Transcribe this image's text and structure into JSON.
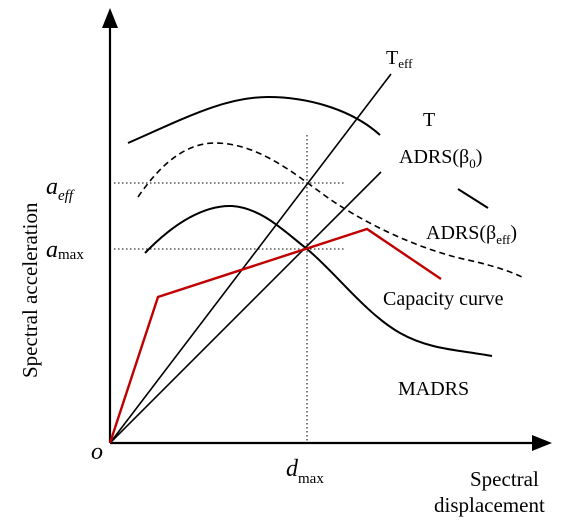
{
  "axes": {
    "y_title": "Spectral acceleration",
    "x_title_line1": "Spectral",
    "x_title_line2": "displacement",
    "origin": "o"
  },
  "ticks": {
    "a_eff": {
      "main": "a",
      "sub": "eff"
    },
    "a_max": {
      "main": "a",
      "sub": "max"
    },
    "d_max": {
      "main": "d",
      "sub": "max"
    }
  },
  "labels": {
    "t_eff": {
      "main": "T",
      "sub": "eff"
    },
    "t": "T",
    "adrs_beta0": {
      "pre": "ADRS(β",
      "sub": "0",
      "post": ")"
    },
    "adrs_beta_eff": {
      "pre": "ADRS(β",
      "sub": "eff",
      "post": ")"
    },
    "capacity_curve": "Capacity curve",
    "madrs": "MADRS"
  },
  "colors": {
    "ink": "#000000",
    "capacity": "#c00000"
  }
}
